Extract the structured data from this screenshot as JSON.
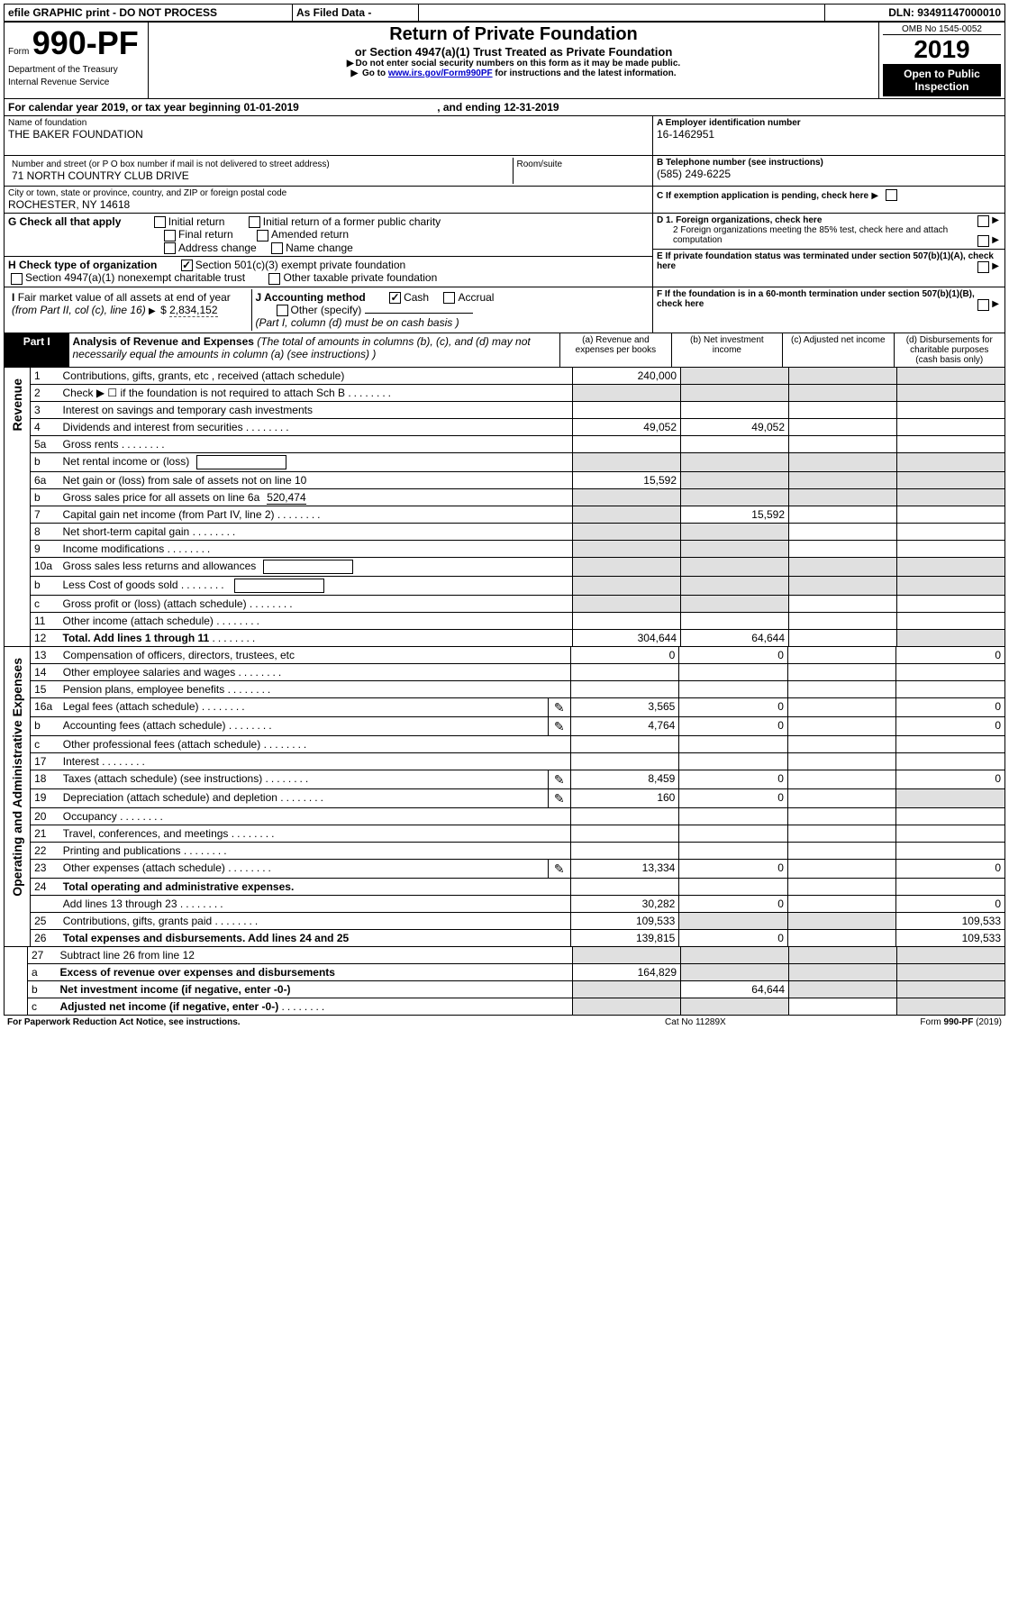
{
  "topbar": {
    "efile": "efile GRAPHIC print - DO NOT PROCESS",
    "asFiled": "As Filed Data -",
    "dln_label": "DLN:",
    "dln": "93491147000010"
  },
  "header": {
    "form_prefix": "Form",
    "form_number": "990-PF",
    "dept": "Department of the Treasury",
    "irs": "Internal Revenue Service",
    "title": "Return of Private Foundation",
    "subtitle": "or Section 4947(a)(1) Trust Treated as Private Foundation",
    "warn1": "Do not enter social security numbers on this form as it may be made public.",
    "warn2_pre": "Go to ",
    "warn2_link": "www.irs.gov/Form990PF",
    "warn2_post": " for instructions and the latest information.",
    "omb": "OMB No 1545-0052",
    "year": "2019",
    "open": "Open to Public Inspection"
  },
  "calendar": {
    "pre": "For calendar year 2019, or tax year beginning ",
    "begin": "01-01-2019",
    "mid": ", and ending ",
    "end": "12-31-2019"
  },
  "foundation": {
    "name_label": "Name of foundation",
    "name": "THE BAKER FOUNDATION",
    "addr_label": "Number and street (or P O  box number if mail is not delivered to street address)",
    "addr": "71 NORTH COUNTRY CLUB DRIVE",
    "room_label": "Room/suite",
    "city_label": "City or town, state or province, country, and ZIP or foreign postal code",
    "city": "ROCHESTER, NY  14618"
  },
  "right_block": {
    "a_label": "A Employer identification number",
    "a": "16-1462951",
    "b_label": "B Telephone number (see instructions)",
    "b": "(585) 249-6225",
    "c_label": "C If exemption application is pending, check here",
    "d1": "D 1. Foreign organizations, check here",
    "d2": "2  Foreign organizations meeting the 85% test, check here and attach computation",
    "e": "E  If private foundation status was terminated under section 507(b)(1)(A), check here",
    "f": "F  If the foundation is in a 60-month termination under section 507(b)(1)(B), check here"
  },
  "g": {
    "label": "G Check all that apply",
    "opts": [
      "Initial return",
      "Initial return of a former public charity",
      "Final return",
      "Amended return",
      "Address change",
      "Name change"
    ]
  },
  "h": {
    "label": "H Check type of organization",
    "opt1": "Section 501(c)(3) exempt private foundation",
    "opt2": "Section 4947(a)(1) nonexempt charitable trust",
    "opt3": "Other taxable private foundation"
  },
  "i": {
    "label_pre": "I Fair market value of all assets at end of year ",
    "label_from": "(from Part II, col  (c), line 16) ",
    "arrow": "▶",
    "dollar": "$",
    "value": "2,834,152"
  },
  "j": {
    "label": "J Accounting method",
    "cash": "Cash",
    "accrual": "Accrual",
    "other": "Other (specify)",
    "note": "(Part I, column (d) must be on cash basis )"
  },
  "part1": {
    "badge": "Part I",
    "title": "Analysis of Revenue and Expenses",
    "note": "(The total of amounts in columns (b), (c), and (d) may not necessarily equal the amounts in column (a) (see instructions) )",
    "col_a": "(a)   Revenue and expenses per books",
    "col_b": "(b)  Net investment income",
    "col_c": "(c)  Adjusted net income",
    "col_d": "(d)  Disbursements for charitable purposes (cash basis only)"
  },
  "sections": {
    "revenue": "Revenue",
    "expenses": "Operating and Administrative Expenses"
  },
  "rows": [
    {
      "n": "1",
      "label": "Contributions, gifts, grants, etc , received (attach schedule)",
      "a": "240,000",
      "b": "",
      "c": "",
      "d": "",
      "gray_bcd": true
    },
    {
      "n": "2",
      "label": "Check ▶ ☐ if the foundation is not required to attach Sch B",
      "dots": true,
      "no_amt": true
    },
    {
      "n": "3",
      "label": "Interest on savings and temporary cash investments",
      "a": "",
      "b": "",
      "c": "",
      "d": ""
    },
    {
      "n": "4",
      "label": "Dividends and interest from securities",
      "dots": true,
      "a": "49,052",
      "b": "49,052",
      "c": "",
      "d": ""
    },
    {
      "n": "5a",
      "label": "Gross rents",
      "dots": true,
      "a": "",
      "b": "",
      "c": "",
      "d": ""
    },
    {
      "n": "b",
      "label": "Net rental income or (loss)",
      "inline_box": true,
      "a": "",
      "b": "",
      "c": "",
      "d": "",
      "gray_abcd": true
    },
    {
      "n": "6a",
      "label": "Net gain or (loss) from sale of assets not on line 10",
      "a": "15,592",
      "b": "",
      "c": "",
      "d": "",
      "gray_bcd": true
    },
    {
      "n": "b",
      "label": "Gross sales price for all assets on line 6a",
      "inline_val": "520,474",
      "gray_abcd": true
    },
    {
      "n": "7",
      "label": "Capital gain net income (from Part IV, line 2)",
      "dots": true,
      "a": "",
      "b": "15,592",
      "c": "",
      "d": "",
      "gray_a": true
    },
    {
      "n": "8",
      "label": "Net short-term capital gain",
      "dots": true,
      "a": "",
      "b": "",
      "c": "",
      "d": "",
      "gray_ab": true
    },
    {
      "n": "9",
      "label": "Income modifications",
      "dots": true,
      "a": "",
      "b": "",
      "c": "",
      "d": "",
      "gray_ab": true
    },
    {
      "n": "10a",
      "label": "Gross sales less returns and allowances",
      "inline_box": true,
      "gray_abcd": true
    },
    {
      "n": "b",
      "label": "Less  Cost of goods sold",
      "dots": true,
      "inline_box": true,
      "gray_abcd": true
    },
    {
      "n": "c",
      "label": "Gross profit or (loss) (attach schedule)",
      "dots": true,
      "a": "",
      "b": "",
      "c": "",
      "d": "",
      "gray_ab": true
    },
    {
      "n": "11",
      "label": "Other income (attach schedule)",
      "dots": true,
      "a": "",
      "b": "",
      "c": "",
      "d": ""
    },
    {
      "n": "12",
      "label": "Total. Add lines 1 through 11",
      "bold": true,
      "dots": true,
      "a": "304,644",
      "b": "64,644",
      "c": "",
      "d": "",
      "gray_d": true
    }
  ],
  "exp_rows": [
    {
      "n": "13",
      "label": "Compensation of officers, directors, trustees, etc",
      "a": "0",
      "b": "0",
      "c": "",
      "d": "0"
    },
    {
      "n": "14",
      "label": "Other employee salaries and wages",
      "dots": true,
      "a": "",
      "b": "",
      "c": "",
      "d": ""
    },
    {
      "n": "15",
      "label": "Pension plans, employee benefits",
      "dots": true,
      "a": "",
      "b": "",
      "c": "",
      "d": ""
    },
    {
      "n": "16a",
      "label": "Legal fees (attach schedule)",
      "dots": true,
      "icon": true,
      "a": "3,565",
      "b": "0",
      "c": "",
      "d": "0"
    },
    {
      "n": "b",
      "label": "Accounting fees (attach schedule)",
      "dots": true,
      "icon": true,
      "a": "4,764",
      "b": "0",
      "c": "",
      "d": "0"
    },
    {
      "n": "c",
      "label": "Other professional fees (attach schedule)",
      "dots": true,
      "a": "",
      "b": "",
      "c": "",
      "d": ""
    },
    {
      "n": "17",
      "label": "Interest",
      "dots": true,
      "a": "",
      "b": "",
      "c": "",
      "d": ""
    },
    {
      "n": "18",
      "label": "Taxes (attach schedule) (see instructions)",
      "dots": true,
      "icon": true,
      "a": "8,459",
      "b": "0",
      "c": "",
      "d": "0"
    },
    {
      "n": "19",
      "label": "Depreciation (attach schedule) and depletion",
      "dots": true,
      "icon": true,
      "a": "160",
      "b": "0",
      "c": "",
      "d": "",
      "gray_d": true
    },
    {
      "n": "20",
      "label": "Occupancy",
      "dots": true,
      "a": "",
      "b": "",
      "c": "",
      "d": ""
    },
    {
      "n": "21",
      "label": "Travel, conferences, and meetings",
      "dots": true,
      "a": "",
      "b": "",
      "c": "",
      "d": ""
    },
    {
      "n": "22",
      "label": "Printing and publications",
      "dots": true,
      "a": "",
      "b": "",
      "c": "",
      "d": ""
    },
    {
      "n": "23",
      "label": "Other expenses (attach schedule)",
      "dots": true,
      "icon": true,
      "a": "13,334",
      "b": "0",
      "c": "",
      "d": "0"
    },
    {
      "n": "24",
      "label": "Total operating and administrative expenses.",
      "bold": true
    },
    {
      "n": "",
      "label": "Add lines 13 through 23",
      "dots": true,
      "a": "30,282",
      "b": "0",
      "c": "",
      "d": "0"
    },
    {
      "n": "25",
      "label": "Contributions, gifts, grants paid",
      "dots": true,
      "a": "109,533",
      "b": "",
      "c": "",
      "d": "109,533",
      "gray_bc": true
    },
    {
      "n": "26",
      "label": "Total expenses and disbursements. Add lines 24 and 25",
      "bold": true,
      "a": "139,815",
      "b": "0",
      "c": "",
      "d": "109,533"
    }
  ],
  "bottom_rows": [
    {
      "n": "27",
      "label": "Subtract line 26 from line 12",
      "gray_abcd": true
    },
    {
      "n": "a",
      "label": "Excess of revenue over expenses and disbursements",
      "bold": true,
      "a": "164,829",
      "gray_bcd": true
    },
    {
      "n": "b",
      "label": "Net investment income (if negative, enter -0-)",
      "bold": true,
      "b": "64,644",
      "gray_a": true,
      "gray_cd": true
    },
    {
      "n": "c",
      "label": "Adjusted net income (if negative, enter -0-)",
      "bold": true,
      "dots": true,
      "gray_ab": true,
      "gray_d": true
    }
  ],
  "footer": {
    "left": "For Paperwork Reduction Act Notice, see instructions.",
    "mid": "Cat  No  11289X",
    "right_pre": "Form ",
    "right_form": "990-PF",
    "right_post": " (2019)"
  }
}
